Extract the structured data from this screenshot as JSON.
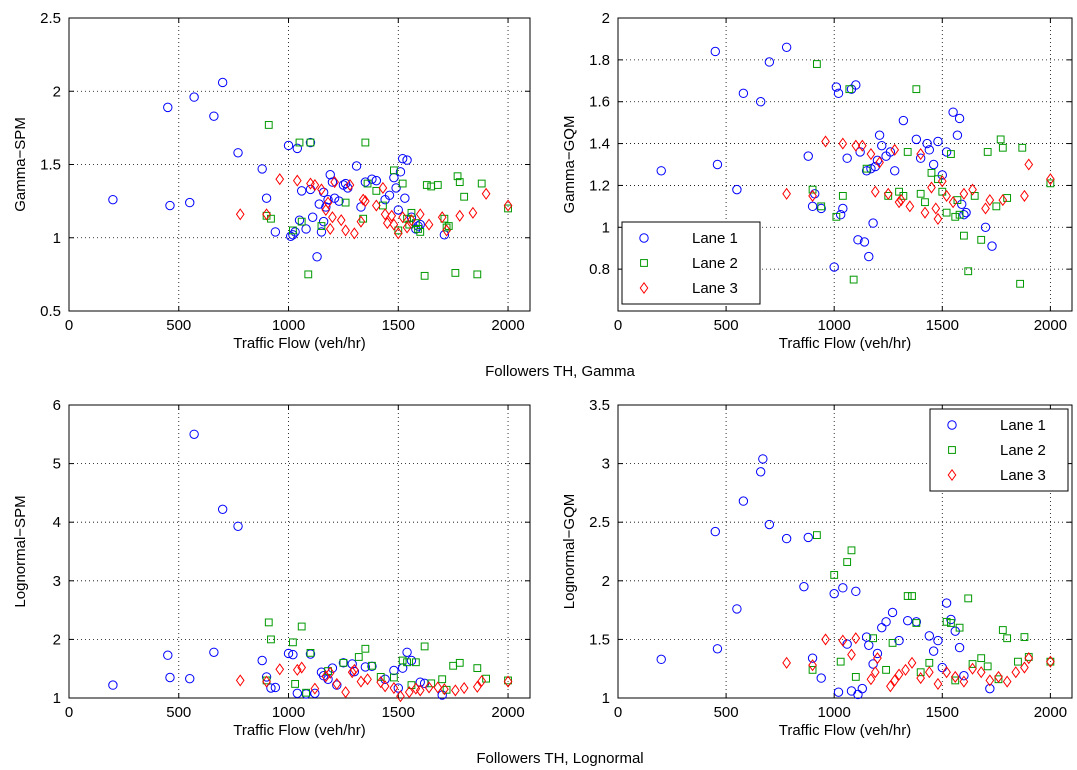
{
  "group_titles": [
    "Followers TH, Gamma",
    "Followers TH, Lognormal"
  ],
  "series_styles": [
    {
      "name": "Lane 1",
      "marker": "circle",
      "color": "#0000ff"
    },
    {
      "name": "Lane 2",
      "marker": "square",
      "color": "#009900"
    },
    {
      "name": "Lane 3",
      "marker": "diamond",
      "color": "#ff0000"
    }
  ],
  "chart_data": [
    {
      "type": "scatter",
      "title": "",
      "xlabel": "Traffic Flow (veh/hr)",
      "ylabel": "Gamma−SPM",
      "xlim": [
        0,
        2100
      ],
      "ylim": [
        0.5,
        2.5
      ],
      "xticks": [
        0,
        500,
        1000,
        1500,
        2000
      ],
      "yticks": [
        0.5,
        1,
        1.5,
        2,
        2.5
      ],
      "xtick_labels": [
        "0",
        "500",
        "1000",
        "1500",
        "2000"
      ],
      "ytick_labels": [
        "0.5",
        "1",
        "1.5",
        "2",
        "2.5"
      ],
      "grid": true,
      "legend": null,
      "series": [
        {
          "x": [
            200,
            450,
            460,
            550,
            570,
            660,
            700,
            770,
            880,
            900,
            940,
            1000,
            1010,
            1020,
            1030,
            1040,
            1050,
            1060,
            1080,
            1100,
            1100,
            1110,
            1130,
            1140,
            1150,
            1160,
            1160,
            1170,
            1180,
            1190,
            1200,
            1210,
            1230,
            1250,
            1260,
            1270,
            1310,
            1330,
            1350,
            1380,
            1400,
            1440,
            1460,
            1480,
            1490,
            1500,
            1510,
            1520,
            1530,
            1540,
            1560,
            1580,
            1590,
            1600,
            1710
          ],
          "y": [
            1.26,
            1.89,
            1.22,
            1.24,
            1.96,
            1.83,
            2.06,
            1.58,
            1.47,
            1.27,
            1.04,
            1.63,
            1.01,
            1.02,
            1.04,
            1.61,
            1.12,
            1.32,
            1.06,
            1.65,
            1.33,
            1.14,
            0.87,
            1.23,
            1.04,
            1.31,
            1.11,
            1.21,
            1.26,
            1.43,
            1.38,
            1.27,
            1.25,
            1.36,
            1.37,
            1.34,
            1.49,
            1.21,
            1.38,
            1.4,
            1.39,
            1.26,
            1.29,
            1.41,
            1.34,
            1.19,
            1.45,
            1.54,
            1.27,
            1.53,
            1.14,
            1.06,
            1.08,
            1.09,
            1.02
          ]
        },
        {
          "x": [
            900,
            910,
            920,
            1020,
            1050,
            1060,
            1090,
            1100,
            1150,
            1260,
            1340,
            1350,
            1360,
            1400,
            1430,
            1480,
            1500,
            1520,
            1540,
            1550,
            1560,
            1580,
            1590,
            1600,
            1620,
            1630,
            1650,
            1680,
            1710,
            1720,
            1730,
            1760,
            1770,
            1780,
            1800,
            1860,
            1880,
            2000
          ],
          "y": [
            1.15,
            1.77,
            1.13,
            1.05,
            1.65,
            1.11,
            0.75,
            1.65,
            1.08,
            1.24,
            1.13,
            1.65,
            1.37,
            1.32,
            1.22,
            1.46,
            1.05,
            1.37,
            1.13,
            1.09,
            1.17,
            1.1,
            1.06,
            1.04,
            0.74,
            1.36,
            1.35,
            1.36,
            1.13,
            1.07,
            1.08,
            0.76,
            1.42,
            1.38,
            1.28,
            0.75,
            1.37,
            1.2
          ]
        },
        {
          "x": [
            780,
            900,
            960,
            1040,
            1100,
            1120,
            1150,
            1170,
            1180,
            1190,
            1200,
            1210,
            1240,
            1260,
            1280,
            1300,
            1330,
            1340,
            1350,
            1400,
            1430,
            1440,
            1450,
            1470,
            1480,
            1500,
            1520,
            1540,
            1560,
            1600,
            1640,
            1700,
            1720,
            1780,
            1840,
            1900,
            2000
          ],
          "y": [
            1.16,
            1.16,
            1.4,
            1.39,
            1.37,
            1.36,
            1.33,
            1.19,
            1.24,
            1.06,
            1.14,
            1.38,
            1.12,
            1.05,
            1.36,
            1.03,
            1.11,
            1.26,
            1.25,
            1.22,
            1.34,
            1.16,
            1.1,
            1.15,
            1.09,
            1.03,
            1.14,
            1.07,
            1.12,
            1.16,
            1.09,
            1.14,
            1.05,
            1.15,
            1.17,
            1.3,
            1.22
          ]
        }
      ]
    },
    {
      "type": "scatter",
      "title": "",
      "xlabel": "Traffic Flow (veh/hr)",
      "ylabel": "Gamma−GQM",
      "xlim": [
        0,
        2100
      ],
      "ylim": [
        0.6,
        2.0
      ],
      "xticks": [
        0,
        500,
        1000,
        1500,
        2000
      ],
      "yticks": [
        0.8,
        1.0,
        1.2,
        1.4,
        1.6,
        1.8,
        2.0
      ],
      "xtick_labels": [
        "0",
        "500",
        "1000",
        "1500",
        "2000"
      ],
      "ytick_labels": [
        "0.8",
        "1",
        "1.2",
        "1.4",
        "1.6",
        "1.8",
        "2"
      ],
      "grid": true,
      "legend": "bottom-left",
      "series": [
        {
          "x": [
            200,
            450,
            460,
            550,
            580,
            660,
            700,
            780,
            880,
            900,
            910,
            940,
            1000,
            1010,
            1020,
            1030,
            1040,
            1060,
            1080,
            1100,
            1110,
            1120,
            1140,
            1150,
            1160,
            1170,
            1180,
            1190,
            1200,
            1210,
            1220,
            1240,
            1260,
            1280,
            1320,
            1380,
            1400,
            1430,
            1440,
            1460,
            1480,
            1500,
            1520,
            1550,
            1570,
            1580,
            1590,
            1600,
            1610,
            1700,
            1730
          ],
          "y": [
            1.27,
            1.84,
            1.3,
            1.18,
            1.64,
            1.6,
            1.79,
            1.86,
            1.34,
            1.1,
            1.16,
            1.09,
            0.81,
            1.67,
            1.64,
            1.06,
            1.09,
            1.33,
            1.66,
            1.68,
            0.94,
            1.36,
            0.93,
            1.27,
            0.86,
            1.28,
            1.02,
            1.29,
            1.32,
            1.44,
            1.39,
            1.34,
            1.36,
            1.27,
            1.51,
            1.42,
            1.33,
            1.4,
            1.37,
            1.3,
            1.41,
            1.25,
            1.36,
            1.55,
            1.44,
            1.52,
            1.11,
            1.06,
            1.07,
            1.0,
            0.91
          ]
        },
        {
          "x": [
            900,
            920,
            940,
            1010,
            1040,
            1070,
            1090,
            1150,
            1250,
            1300,
            1320,
            1340,
            1380,
            1400,
            1420,
            1450,
            1480,
            1500,
            1520,
            1540,
            1560,
            1570,
            1580,
            1600,
            1620,
            1650,
            1680,
            1710,
            1750,
            1770,
            1780,
            1800,
            1860,
            1870,
            2000
          ],
          "y": [
            1.18,
            1.78,
            1.1,
            1.05,
            1.15,
            1.66,
            0.75,
            1.28,
            1.15,
            1.17,
            1.15,
            1.36,
            1.66,
            1.16,
            1.12,
            1.26,
            1.23,
            1.17,
            1.07,
            1.35,
            1.05,
            1.13,
            1.06,
            0.96,
            0.79,
            1.15,
            0.94,
            1.36,
            1.1,
            1.42,
            1.38,
            1.14,
            0.73,
            1.38,
            1.21
          ]
        },
        {
          "x": [
            780,
            900,
            960,
            1040,
            1100,
            1130,
            1170,
            1190,
            1210,
            1250,
            1280,
            1300,
            1310,
            1350,
            1400,
            1420,
            1450,
            1470,
            1480,
            1500,
            1520,
            1550,
            1600,
            1640,
            1700,
            1720,
            1780,
            1880,
            1900,
            2000
          ],
          "y": [
            1.16,
            1.15,
            1.41,
            1.4,
            1.39,
            1.39,
            1.35,
            1.17,
            1.31,
            1.16,
            1.37,
            1.12,
            1.13,
            1.1,
            1.35,
            1.07,
            1.19,
            1.09,
            1.04,
            1.22,
            1.15,
            1.12,
            1.16,
            1.18,
            1.09,
            1.13,
            1.13,
            1.15,
            1.3,
            1.23
          ]
        }
      ]
    },
    {
      "type": "scatter",
      "title": "",
      "xlabel": "Traffic Flow (veh/hr)",
      "ylabel": "Lognormal−SPM",
      "xlim": [
        0,
        2100
      ],
      "ylim": [
        1,
        6
      ],
      "xticks": [
        0,
        500,
        1000,
        1500,
        2000
      ],
      "yticks": [
        1,
        2,
        3,
        4,
        5,
        6
      ],
      "xtick_labels": [
        "0",
        "500",
        "1000",
        "1500",
        "2000"
      ],
      "ytick_labels": [
        "1",
        "2",
        "3",
        "4",
        "5",
        "6"
      ],
      "grid": true,
      "legend": null,
      "series": [
        {
          "x": [
            200,
            450,
            460,
            550,
            570,
            660,
            700,
            770,
            880,
            900,
            920,
            940,
            1000,
            1020,
            1040,
            1080,
            1100,
            1120,
            1150,
            1160,
            1180,
            1200,
            1220,
            1250,
            1290,
            1300,
            1350,
            1380,
            1440,
            1480,
            1500,
            1520,
            1540,
            1560,
            1600,
            1620,
            1700
          ],
          "y": [
            1.22,
            1.73,
            1.35,
            1.33,
            5.5,
            1.78,
            4.22,
            3.93,
            1.64,
            1.36,
            1.17,
            1.18,
            1.76,
            1.74,
            1.08,
            1.07,
            1.75,
            1.08,
            1.44,
            1.38,
            1.32,
            1.51,
            1.22,
            1.6,
            1.58,
            1.45,
            1.53,
            1.54,
            1.32,
            1.47,
            1.17,
            1.51,
            1.78,
            1.64,
            1.27,
            1.25,
            1.05
          ]
        },
        {
          "x": [
            900,
            910,
            920,
            1020,
            1030,
            1060,
            1080,
            1100,
            1180,
            1250,
            1320,
            1350,
            1380,
            1420,
            1480,
            1520,
            1540,
            1560,
            1580,
            1620,
            1650,
            1700,
            1720,
            1750,
            1780,
            1860,
            1900,
            2000
          ],
          "y": [
            1.3,
            2.29,
            2.0,
            1.95,
            1.24,
            2.22,
            1.09,
            1.77,
            1.46,
            1.6,
            1.7,
            1.84,
            1.55,
            1.36,
            1.35,
            1.64,
            1.61,
            1.22,
            1.61,
            1.88,
            1.25,
            1.32,
            1.14,
            1.55,
            1.6,
            1.51,
            1.33,
            1.3
          ]
        },
        {
          "x": [
            780,
            900,
            960,
            1040,
            1060,
            1120,
            1170,
            1190,
            1220,
            1260,
            1290,
            1300,
            1330,
            1360,
            1420,
            1440,
            1480,
            1510,
            1550,
            1580,
            1600,
            1640,
            1680,
            1710,
            1760,
            1800,
            1860,
            1880,
            2000
          ],
          "y": [
            1.3,
            1.28,
            1.49,
            1.48,
            1.52,
            1.16,
            1.37,
            1.43,
            1.24,
            1.1,
            1.44,
            1.48,
            1.28,
            1.32,
            1.27,
            1.2,
            1.17,
            1.03,
            1.1,
            1.16,
            1.13,
            1.18,
            1.18,
            1.15,
            1.13,
            1.17,
            1.19,
            1.29,
            1.28
          ]
        }
      ]
    },
    {
      "type": "scatter",
      "title": "",
      "xlabel": "Traffic Flow (veh/hr)",
      "ylabel": "Lognormal−GQM",
      "xlim": [
        0,
        2100
      ],
      "ylim": [
        1,
        3.5
      ],
      "xticks": [
        0,
        500,
        1000,
        1500,
        2000
      ],
      "yticks": [
        1,
        1.5,
        2,
        2.5,
        3,
        3.5
      ],
      "xtick_labels": [
        "0",
        "500",
        "1000",
        "1500",
        "2000"
      ],
      "ytick_labels": [
        "1",
        "1.5",
        "2",
        "2.5",
        "3",
        "3.5"
      ],
      "grid": true,
      "legend": "top-right",
      "series": [
        {
          "x": [
            200,
            450,
            460,
            550,
            580,
            660,
            670,
            700,
            780,
            860,
            880,
            900,
            940,
            1000,
            1020,
            1040,
            1060,
            1080,
            1100,
            1110,
            1130,
            1150,
            1160,
            1180,
            1200,
            1220,
            1240,
            1270,
            1300,
            1340,
            1380,
            1440,
            1460,
            1480,
            1500,
            1520,
            1540,
            1560,
            1580,
            1600,
            1720
          ],
          "y": [
            1.33,
            2.42,
            1.42,
            1.76,
            2.68,
            2.93,
            3.04,
            2.48,
            2.36,
            1.95,
            2.37,
            1.34,
            1.17,
            1.89,
            1.05,
            1.94,
            1.46,
            1.06,
            1.91,
            1.03,
            1.08,
            1.52,
            1.45,
            1.29,
            1.38,
            1.6,
            1.65,
            1.73,
            1.49,
            1.66,
            1.65,
            1.53,
            1.4,
            1.49,
            1.26,
            1.81,
            1.67,
            1.57,
            1.43,
            1.19,
            1.08
          ]
        },
        {
          "x": [
            900,
            920,
            1000,
            1030,
            1060,
            1080,
            1100,
            1180,
            1240,
            1270,
            1340,
            1360,
            1380,
            1400,
            1440,
            1520,
            1540,
            1560,
            1580,
            1620,
            1640,
            1680,
            1710,
            1760,
            1780,
            1800,
            1850,
            1880,
            1900,
            2000
          ],
          "y": [
            1.24,
            2.39,
            2.05,
            1.31,
            2.16,
            2.26,
            1.18,
            1.51,
            1.24,
            1.47,
            1.87,
            1.87,
            1.64,
            1.22,
            1.3,
            1.65,
            1.64,
            1.15,
            1.6,
            1.85,
            1.29,
            1.34,
            1.27,
            1.16,
            1.58,
            1.51,
            1.31,
            1.52,
            1.35,
            1.31
          ]
        },
        {
          "x": [
            780,
            900,
            960,
            1040,
            1080,
            1100,
            1170,
            1190,
            1200,
            1260,
            1280,
            1300,
            1330,
            1360,
            1400,
            1440,
            1480,
            1520,
            1560,
            1600,
            1640,
            1680,
            1720,
            1760,
            1800,
            1840,
            1880,
            1900,
            2000
          ],
          "y": [
            1.3,
            1.28,
            1.5,
            1.49,
            1.37,
            1.51,
            1.16,
            1.22,
            1.34,
            1.1,
            1.15,
            1.2,
            1.24,
            1.3,
            1.17,
            1.22,
            1.12,
            1.22,
            1.18,
            1.14,
            1.25,
            1.22,
            1.15,
            1.18,
            1.14,
            1.22,
            1.26,
            1.34,
            1.31
          ]
        }
      ]
    }
  ]
}
